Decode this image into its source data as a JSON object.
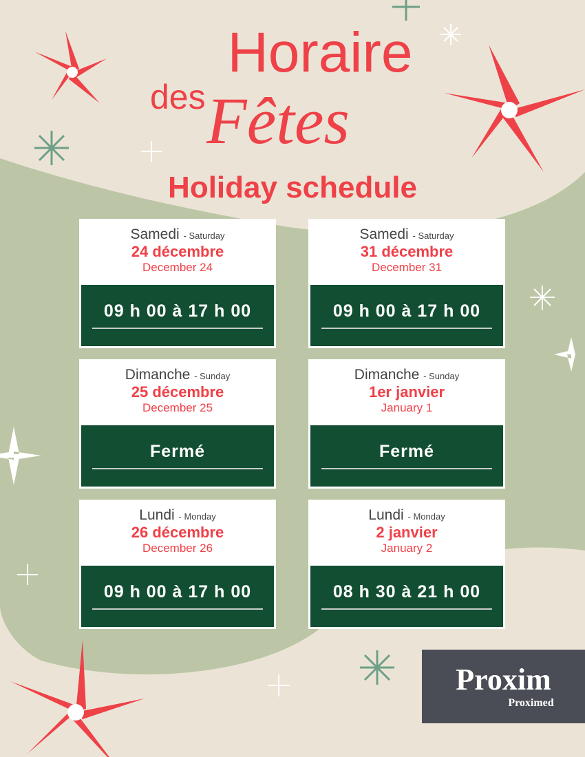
{
  "title": {
    "line1": "Horaire",
    "line2a": "des",
    "line2b": "Fêtes",
    "subtitle": "Holiday schedule"
  },
  "colors": {
    "red": "#ee4148",
    "green": "#124f32",
    "beige": "#ebe4d6",
    "sage": "#bcc6a6"
  },
  "cards": [
    {
      "day_fr": "Samedi",
      "day_en": "- Saturday",
      "date_fr": "24 décembre",
      "date_en": "December 24",
      "hours": "09 h 00 à 17 h 00"
    },
    {
      "day_fr": "Samedi",
      "day_en": "- Saturday",
      "date_fr": "31 décembre",
      "date_en": "December 31",
      "hours": "09 h 00 à 17 h 00"
    },
    {
      "day_fr": "Dimanche",
      "day_en": "- Sunday",
      "date_fr": "25 décembre",
      "date_en": "December 25",
      "hours": "Fermé"
    },
    {
      "day_fr": "Dimanche",
      "day_en": "- Sunday",
      "date_fr": "1er janvier",
      "date_en": "January 1",
      "hours": "Fermé"
    },
    {
      "day_fr": "Lundi",
      "day_en": "- Monday",
      "date_fr": "26 décembre",
      "date_en": "December 26",
      "hours": "09 h 00 à 17 h 00"
    },
    {
      "day_fr": "Lundi",
      "day_en": "- Monday",
      "date_fr": "2 janvier",
      "date_en": "January 2",
      "hours": "08 h 30 à 21 h 00"
    }
  ],
  "logo": {
    "main": "Proxim",
    "sub": "Proximed"
  }
}
